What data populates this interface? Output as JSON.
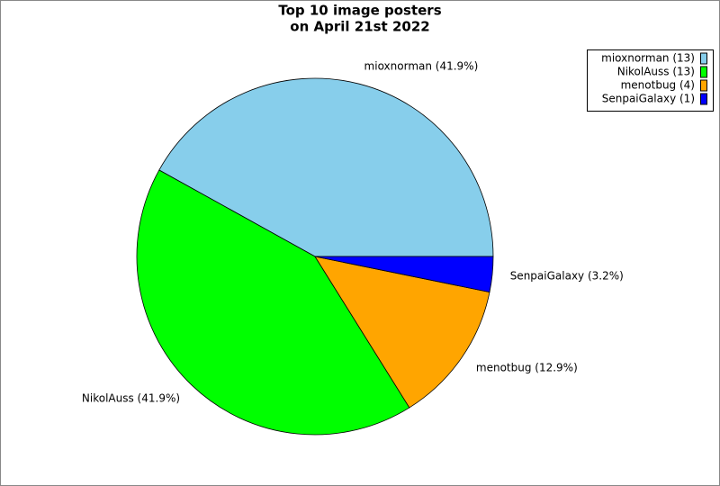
{
  "chart_data": {
    "type": "pie",
    "title": [
      "Top 10 image posters",
      "on April 21st 2022"
    ],
    "categories": [
      "mioxnorman",
      "NikolAuss",
      "menotbug",
      "SenpaiGalaxy"
    ],
    "values": [
      41.9,
      41.9,
      12.9,
      3.2
    ],
    "value_labels": [
      "mioxnorman (41.9%)",
      "NikolAuss (41.9%)",
      "menotbug (12.9%)",
      "SenpaiGalaxy (3.2%)"
    ],
    "counts": [
      13,
      13,
      4,
      1
    ],
    "legend_labels": [
      "mioxnorman (13)",
      "NikolAuss (13)",
      "menotbug (4)",
      "SenpaiGalaxy (1)"
    ],
    "colors": [
      "#87ceeb",
      "#00ff00",
      "#ffa500",
      "#0000ff"
    ],
    "legend": "top-right"
  }
}
